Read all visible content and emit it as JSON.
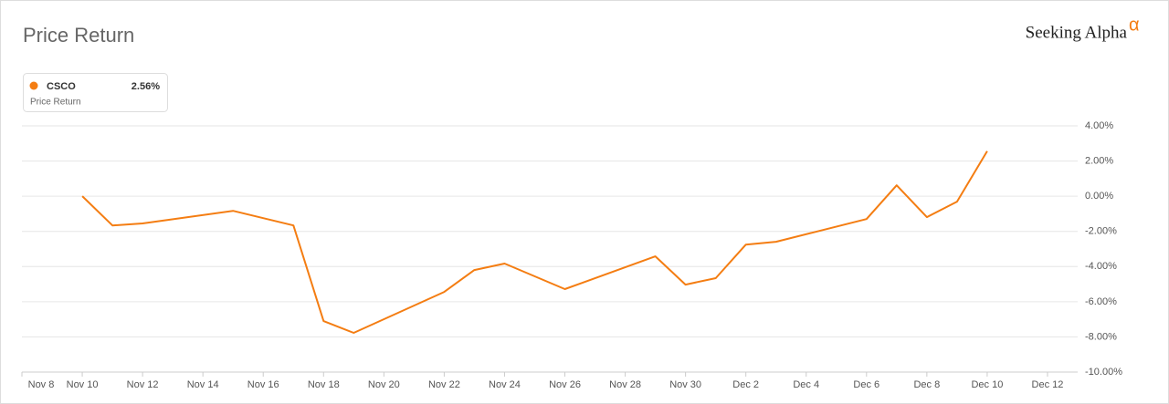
{
  "chart_data": {
    "type": "line",
    "title": "Price Return",
    "brand": {
      "name": "Seeking Alpha",
      "mark": "α"
    },
    "legend": {
      "position": "top-left",
      "value": 2.56,
      "value_label": "2.56%",
      "caption": "Price Return"
    },
    "x": [
      "Nov 10",
      "Nov 11",
      "Nov 12",
      "Nov 15",
      "Nov 17",
      "Nov 18",
      "Nov 19",
      "Nov 22",
      "Nov 23",
      "Nov 24",
      "Nov 26",
      "Nov 29",
      "Nov 30",
      "Dec 1",
      "Dec 2",
      "Dec 3",
      "Dec 6",
      "Dec 7",
      "Dec 8",
      "Dec 9",
      "Dec 10"
    ],
    "series": [
      {
        "name": "CSCO",
        "color": "#f47d12",
        "values": [
          0,
          -1.66,
          -1.55,
          -0.83,
          -1.66,
          -7.1,
          -7.77,
          -5.44,
          -4.2,
          -3.83,
          -5.28,
          -3.42,
          -5.03,
          -4.66,
          -2.75,
          -2.59,
          -1.3,
          0.62,
          -1.19,
          -0.31,
          2.56
        ]
      }
    ],
    "xlim": [
      "Nov 8",
      "Dec 13"
    ],
    "xticks": [
      "Nov 8",
      "Nov 10",
      "Nov 12",
      "Nov 14",
      "Nov 16",
      "Nov 18",
      "Nov 20",
      "Nov 22",
      "Nov 24",
      "Nov 26",
      "Nov 28",
      "Nov 30",
      "Dec 2",
      "Dec 4",
      "Dec 6",
      "Dec 8",
      "Dec 10",
      "Dec 12"
    ],
    "ylim": [
      -10,
      4
    ],
    "yticks": [
      {
        "value": 4,
        "label": "4.00%"
      },
      {
        "value": 2,
        "label": "2.00%"
      },
      {
        "value": 0,
        "label": "0.00%"
      },
      {
        "value": -2,
        "label": "-2.00%"
      },
      {
        "value": -4,
        "label": "-4.00%"
      },
      {
        "value": -6,
        "label": "-6.00%"
      },
      {
        "value": -8,
        "label": "-8.00%"
      },
      {
        "value": -10,
        "label": "-10.00%"
      }
    ],
    "grid": true
  }
}
